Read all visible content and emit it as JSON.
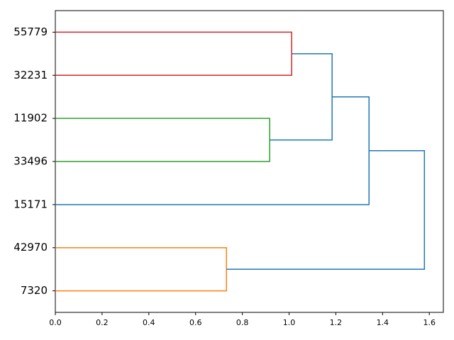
{
  "chart_data": {
    "type": "dendrogram",
    "orientation": "horizontal",
    "xlim": [
      0,
      1.66
    ],
    "xticks": [
      {
        "value": 0,
        "label": "0.0"
      },
      {
        "value": 0.2,
        "label": "0.2"
      },
      {
        "value": 0.4,
        "label": "0.4"
      },
      {
        "value": 0.6,
        "label": "0.6"
      },
      {
        "value": 0.8,
        "label": "0.8"
      },
      {
        "value": 1,
        "label": "1.0"
      },
      {
        "value": 1.2,
        "label": "1.2"
      },
      {
        "value": 1.4,
        "label": "1.4"
      },
      {
        "value": 1.6,
        "label": "1.6"
      }
    ],
    "tree": {
      "height": 1.579,
      "color": "#1f77b4",
      "children": [
        {
          "height": 1.342,
          "color": "#1f77b4",
          "children": [
            {
              "height": 1.184,
              "color": "#1f77b4",
              "children": [
                {
                  "height": 1.011,
                  "color": "#d62728",
                  "children": [
                    {
                      "label": "55779",
                      "height": 0
                    },
                    {
                      "label": "32231",
                      "height": 0
                    }
                  ]
                },
                {
                  "height": 0.917,
                  "color": "#2ca02c",
                  "children": [
                    {
                      "label": "11902",
                      "height": 0
                    },
                    {
                      "label": "33496",
                      "height": 0
                    }
                  ]
                }
              ]
            },
            {
              "label": "15171",
              "height": 0
            }
          ]
        },
        {
          "height": 0.732,
          "color": "#ff7f0e",
          "children": [
            {
              "label": "42970",
              "height": 0
            },
            {
              "label": "7320",
              "height": 0
            }
          ]
        }
      ]
    }
  }
}
